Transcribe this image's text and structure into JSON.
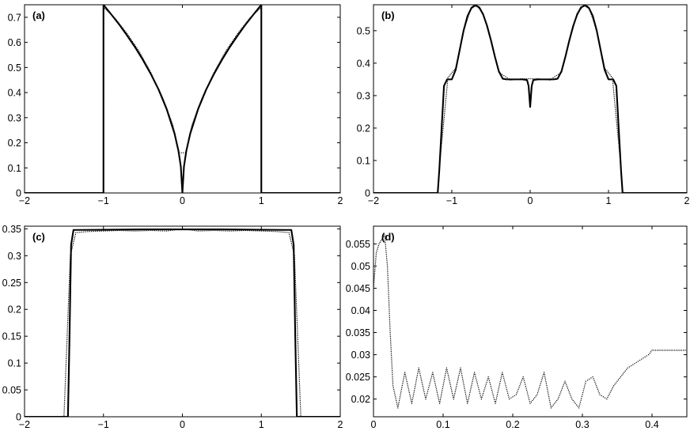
{
  "chart_data": [
    {
      "panel": "(a)",
      "type": "line",
      "xlim": [
        -2,
        2
      ],
      "ylim": [
        0,
        0.75
      ],
      "xticks": [
        -2,
        -1,
        0,
        1,
        2
      ],
      "yticks": [
        0,
        0.1,
        0.2,
        0.3,
        0.4,
        0.5,
        0.6,
        0.7
      ],
      "xtick_labels": [
        "−2",
        "−1",
        "0",
        "1",
        "2"
      ],
      "ytick_labels": [
        "0",
        "0.1",
        "0.2",
        "0.3",
        "0.4",
        "0.5",
        "0.6",
        "0.7"
      ],
      "grid": false,
      "series": [
        {
          "style": "solid",
          "x": [
            -2,
            -1.0,
            -1.0,
            -0.9,
            -0.8,
            -0.7,
            -0.6,
            -0.5,
            -0.4,
            -0.3,
            -0.2,
            -0.1,
            -0.05,
            -0.02,
            0,
            0.02,
            0.05,
            0.1,
            0.2,
            0.3,
            0.4,
            0.5,
            0.6,
            0.7,
            0.8,
            0.9,
            1.0,
            1.0,
            2
          ],
          "y": [
            0,
            0,
            0.75,
            0.711,
            0.671,
            0.627,
            0.581,
            0.53,
            0.474,
            0.411,
            0.335,
            0.237,
            0.168,
            0.106,
            0,
            0.106,
            0.168,
            0.237,
            0.335,
            0.411,
            0.474,
            0.53,
            0.581,
            0.627,
            0.671,
            0.711,
            0.75,
            0,
            0
          ]
        },
        {
          "style": "dotted",
          "x": [
            -1.0,
            -0.85,
            -0.7,
            -0.55,
            -0.4,
            -0.25,
            -0.12,
            -0.04,
            0.04,
            0.12,
            0.25,
            0.4,
            0.55,
            0.7,
            0.85,
            1.0
          ],
          "y": [
            0.74,
            0.695,
            0.635,
            0.565,
            0.48,
            0.38,
            0.27,
            0.16,
            0.16,
            0.27,
            0.38,
            0.48,
            0.565,
            0.635,
            0.695,
            0.74
          ]
        }
      ]
    },
    {
      "panel": "(b)",
      "type": "line",
      "xlim": [
        -2,
        2
      ],
      "ylim": [
        0,
        0.58
      ],
      "xticks": [
        -2,
        -1,
        0,
        1,
        2
      ],
      "yticks": [
        0,
        0.1,
        0.2,
        0.3,
        0.4,
        0.5
      ],
      "xtick_labels": [
        "−2",
        "−1",
        "0",
        "1",
        "2"
      ],
      "ytick_labels": [
        "0",
        "0.1",
        "0.2",
        "0.3",
        "0.4",
        "0.5"
      ],
      "grid": false,
      "series": [
        {
          "style": "solid",
          "x": [
            -2,
            -1.18,
            -1.16,
            -1.13,
            -1.1,
            -1.06,
            -1.0,
            -0.95,
            -0.9,
            -0.85,
            -0.8,
            -0.75,
            -0.7,
            -0.65,
            -0.6,
            -0.55,
            -0.5,
            -0.45,
            -0.4,
            -0.35,
            -0.3,
            -0.2,
            -0.1,
            -0.04,
            -0.02,
            0,
            0.02,
            0.04,
            0.1,
            0.2,
            0.3,
            0.35,
            0.4,
            0.45,
            0.5,
            0.55,
            0.6,
            0.65,
            0.7,
            0.75,
            0.8,
            0.85,
            0.9,
            0.95,
            1.0,
            1.06,
            1.1,
            1.13,
            1.16,
            1.18,
            2
          ],
          "y": [
            0,
            0,
            0.07,
            0.2,
            0.33,
            0.35,
            0.35,
            0.38,
            0.44,
            0.5,
            0.545,
            0.57,
            0.578,
            0.572,
            0.55,
            0.515,
            0.47,
            0.42,
            0.375,
            0.352,
            0.35,
            0.35,
            0.35,
            0.348,
            0.33,
            0.265,
            0.33,
            0.348,
            0.35,
            0.35,
            0.35,
            0.352,
            0.375,
            0.42,
            0.47,
            0.515,
            0.55,
            0.572,
            0.578,
            0.57,
            0.545,
            0.5,
            0.44,
            0.38,
            0.35,
            0.35,
            0.33,
            0.2,
            0.07,
            0,
            0
          ]
        },
        {
          "style": "dotted",
          "x": [
            -1.15,
            -1.05,
            -0.95,
            -0.85,
            -0.75,
            -0.7,
            -0.6,
            -0.5,
            -0.4,
            -0.25,
            -0.1,
            0.1,
            0.25,
            0.4,
            0.5,
            0.6,
            0.7,
            0.75,
            0.85,
            0.95,
            1.05,
            1.15
          ],
          "y": [
            0.1,
            0.355,
            0.385,
            0.5,
            0.572,
            0.583,
            0.553,
            0.468,
            0.372,
            0.348,
            0.352,
            0.352,
            0.348,
            0.372,
            0.468,
            0.553,
            0.583,
            0.572,
            0.5,
            0.385,
            0.355,
            0.1
          ]
        }
      ]
    },
    {
      "panel": "(c)",
      "type": "line",
      "xlim": [
        -2,
        2
      ],
      "ylim": [
        0,
        0.355
      ],
      "xticks": [
        -2,
        -1,
        0,
        1,
        2
      ],
      "yticks": [
        0,
        0.05,
        0.1,
        0.15,
        0.2,
        0.25,
        0.3,
        0.35
      ],
      "xtick_labels": [
        "−2",
        "−1",
        "0",
        "1",
        "2"
      ],
      "ytick_labels": [
        "0",
        "0.05",
        "0.1",
        "0.15",
        "0.2",
        "0.25",
        "0.3",
        "0.35"
      ],
      "grid": false,
      "series": [
        {
          "style": "solid",
          "x": [
            -2,
            -1.45,
            -1.43,
            -1.41,
            -1.38,
            -1.3,
            -0.5,
            0,
            0.5,
            1.3,
            1.38,
            1.41,
            1.43,
            1.45,
            2
          ],
          "y": [
            0,
            0,
            0.15,
            0.32,
            0.348,
            0.348,
            0.349,
            0.349,
            0.349,
            0.348,
            0.348,
            0.32,
            0.15,
            0,
            0
          ]
        },
        {
          "style": "dotted",
          "x": [
            -1.5,
            -1.42,
            -1.35,
            -1.2,
            -1.0,
            -0.8,
            -0.6,
            -0.4,
            -0.2,
            0,
            0.2,
            0.4,
            0.6,
            0.8,
            1.0,
            1.2,
            1.35,
            1.42,
            1.5
          ],
          "y": [
            0.002,
            0.3,
            0.343,
            0.345,
            0.346,
            0.347,
            0.346,
            0.347,
            0.346,
            0.35,
            0.346,
            0.347,
            0.346,
            0.347,
            0.346,
            0.345,
            0.343,
            0.3,
            0.002
          ]
        }
      ]
    },
    {
      "panel": "(d)",
      "type": "scatter",
      "xlim": [
        0,
        0.45
      ],
      "ylim": [
        0.016,
        0.059
      ],
      "xticks": [
        0,
        0.1,
        0.2,
        0.3,
        0.4
      ],
      "yticks": [
        0.02,
        0.025,
        0.03,
        0.035,
        0.04,
        0.045,
        0.05,
        0.055
      ],
      "xtick_labels": [
        "0",
        "0.1",
        "0.2",
        "0.3",
        "0.4"
      ],
      "ytick_labels": [
        "0.02",
        "0.025",
        "0.03",
        "0.035",
        "0.04",
        "0.045",
        "0.05",
        "0.055"
      ],
      "grid": false,
      "series": [
        {
          "style": "dotted",
          "x": [
            0.0,
            0.004,
            0.008,
            0.012,
            0.016,
            0.02,
            0.024,
            0.028,
            0.035,
            0.045,
            0.055,
            0.065,
            0.075,
            0.085,
            0.095,
            0.105,
            0.115,
            0.125,
            0.135,
            0.145,
            0.155,
            0.165,
            0.175,
            0.185,
            0.195,
            0.205,
            0.215,
            0.225,
            0.235,
            0.245,
            0.255,
            0.265,
            0.275,
            0.285,
            0.295,
            0.305,
            0.315,
            0.325,
            0.335,
            0.345,
            0.355,
            0.365,
            0.375,
            0.385,
            0.395,
            0.4,
            0.41,
            0.42,
            0.43,
            0.44,
            0.45
          ],
          "y": [
            0.045,
            0.053,
            0.055,
            0.056,
            0.057,
            0.05,
            0.035,
            0.023,
            0.018,
            0.026,
            0.019,
            0.027,
            0.02,
            0.026,
            0.019,
            0.027,
            0.02,
            0.027,
            0.019,
            0.026,
            0.02,
            0.025,
            0.019,
            0.026,
            0.02,
            0.021,
            0.025,
            0.019,
            0.021,
            0.026,
            0.018,
            0.02,
            0.024,
            0.02,
            0.018,
            0.024,
            0.025,
            0.021,
            0.02,
            0.023,
            0.025,
            0.027,
            0.028,
            0.029,
            0.03,
            0.031,
            0.031,
            0.031,
            0.031,
            0.031,
            0.031
          ]
        }
      ]
    }
  ]
}
